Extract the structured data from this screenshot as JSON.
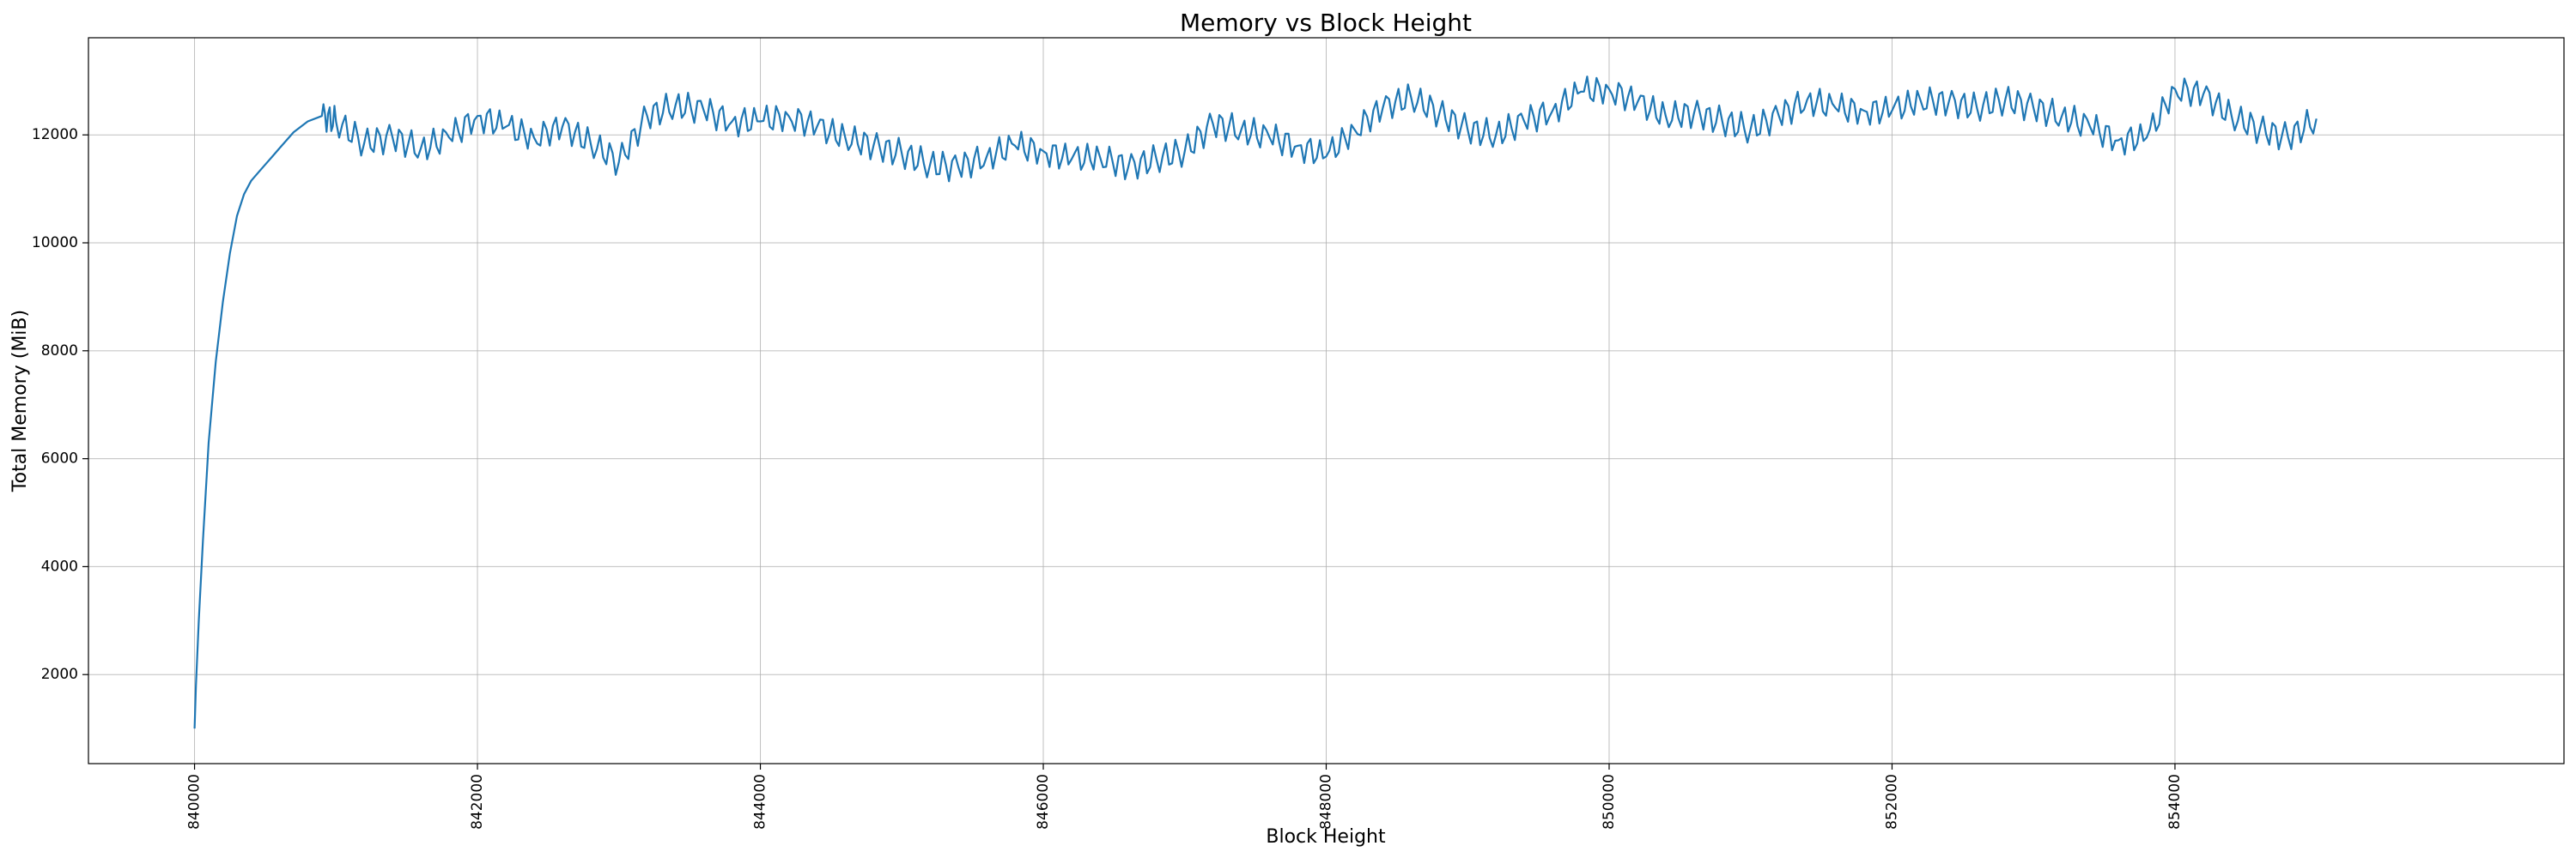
{
  "chart_data": {
    "type": "line",
    "title": "Memory vs Block Height",
    "xlabel": "Block Height",
    "ylabel": "Total Memory (MiB)",
    "xlim": [
      839250,
      856750
    ],
    "ylim": [
      350,
      13800
    ],
    "xticks": [
      840000,
      842000,
      844000,
      846000,
      848000,
      850000,
      852000,
      854000
    ],
    "yticks": [
      2000,
      4000,
      6000,
      8000,
      10000,
      12000
    ],
    "xtick_rotation": 90,
    "grid": true,
    "colors": {
      "line": "#1f77b4",
      "grid": "#b0b0b0",
      "frame": "#000000"
    },
    "series": [
      {
        "x": [
          840000,
          840010,
          840030,
          840060,
          840100,
          840150,
          840200,
          840250,
          840300,
          840350,
          840400,
          840450,
          840500,
          840550,
          840600,
          840700,
          840800,
          840900,
          841000,
          841200,
          841400,
          841600,
          841800,
          842000,
          842200,
          842400,
          842600,
          842800,
          843000,
          843200,
          843400,
          843600,
          843800,
          844000,
          844200,
          844400,
          844600,
          844800,
          845000,
          845200,
          845400,
          845600,
          845800,
          846000,
          846200,
          846400,
          846600,
          846800,
          847000,
          847200,
          847400,
          847600,
          847800,
          848000,
          848200,
          848400,
          848600,
          848800,
          849000,
          849200,
          849400,
          849600,
          849800,
          850000,
          850200,
          850400,
          850600,
          850800,
          851000,
          851200,
          851400,
          851600,
          851800,
          852000,
          852200,
          852400,
          852600,
          852800,
          853000,
          853200,
          853400,
          853600,
          853800,
          854000,
          854200,
          854400,
          854600,
          854800,
          855000
        ],
        "y": [
          1000,
          1800,
          3000,
          4500,
          6300,
          7800,
          8900,
          9800,
          10500,
          10900,
          11150,
          11300,
          11450,
          11600,
          11750,
          12050,
          12250,
          12350,
          12250,
          11850,
          11950,
          11750,
          11950,
          12350,
          12150,
          11950,
          12150,
          11850,
          11500,
          12350,
          12550,
          12450,
          12250,
          12250,
          12350,
          12150,
          11950,
          11800,
          11650,
          11450,
          11400,
          11600,
          11800,
          11700,
          11550,
          11600,
          11400,
          11550,
          11700,
          12200,
          12100,
          11950,
          11800,
          11600,
          12100,
          12500,
          12700,
          12400,
          12100,
          12000,
          12250,
          12450,
          12800,
          12850,
          12600,
          12350,
          12400,
          12250,
          12100,
          12350,
          12650,
          12500,
          12450,
          12450,
          12650,
          12600,
          12500,
          12650,
          12500,
          12350,
          12150,
          11900,
          11950,
          12850,
          12750,
          12350,
          12100,
          11950,
          12300
        ]
      }
    ]
  }
}
